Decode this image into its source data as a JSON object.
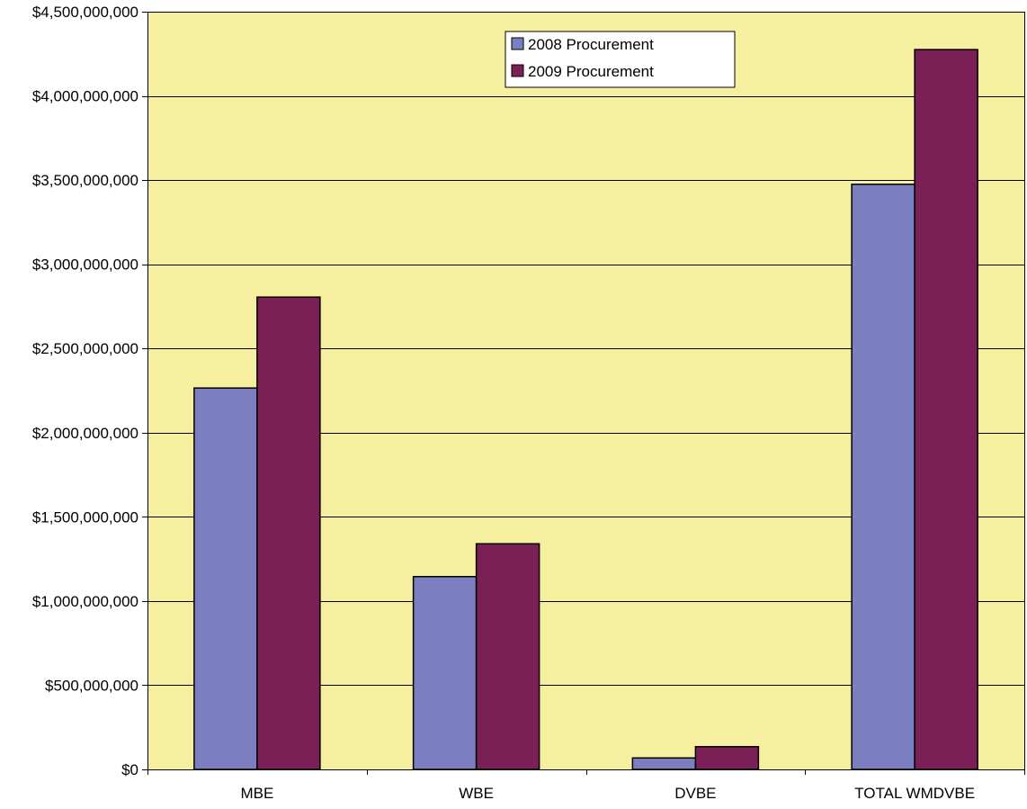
{
  "chart_data": {
    "type": "bar",
    "categories": [
      "MBE",
      "WBE",
      "DVBE",
      "TOTAL WMDVBE"
    ],
    "series": [
      {
        "name": "2008 Procurement",
        "color": "#7b7fbf",
        "values": [
          2265000000,
          1145000000,
          68000000,
          3475000000
        ]
      },
      {
        "name": "2009 Procurement",
        "color": "#7b1f57",
        "values": [
          2805000000,
          1340000000,
          135000000,
          4275000000
        ]
      }
    ],
    "ylim": [
      0,
      4500000000
    ],
    "yticks": [
      0,
      500000000,
      1000000000,
      1500000000,
      2000000000,
      2500000000,
      3000000000,
      3500000000,
      4000000000,
      4500000000
    ],
    "ytick_labels": [
      "$0",
      "$500,000,000",
      "$1,000,000,000",
      "$1,500,000,000",
      "$2,000,000,000",
      "$2,500,000,000",
      "$3,000,000,000",
      "$3,500,000,000",
      "$4,000,000,000",
      "$4,500,000,000"
    ],
    "title": "",
    "xlabel": "",
    "ylabel": "",
    "grid": true,
    "legend_position": "top-center",
    "plot_background": "#f5ef9f"
  }
}
